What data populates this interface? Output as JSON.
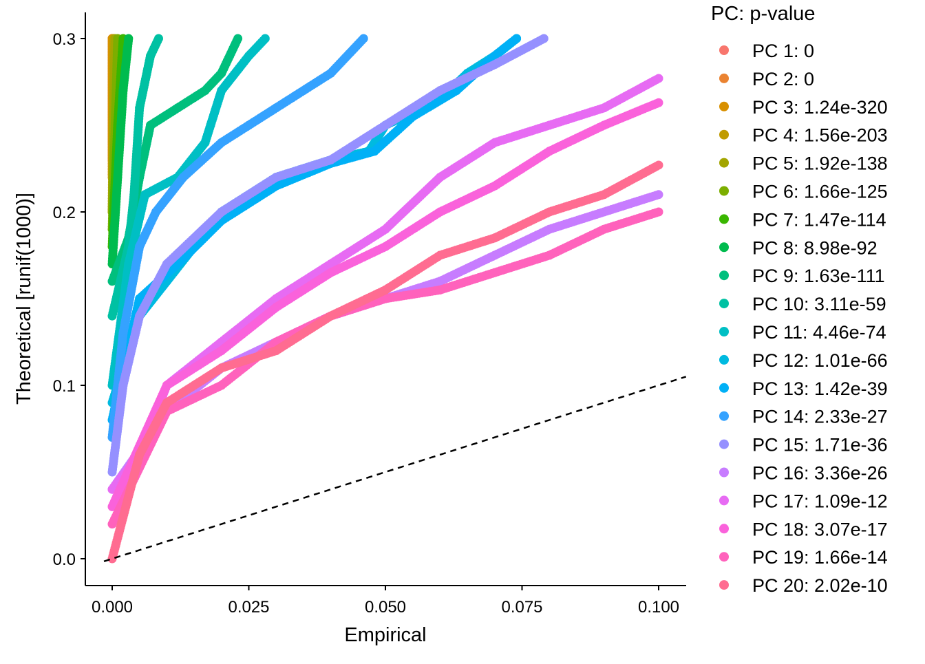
{
  "chart_data": {
    "type": "scatter",
    "title": "",
    "xlabel": "Empirical",
    "ylabel": "Theoretical [runif(1000)]",
    "xlim": [
      -0.005,
      0.105
    ],
    "ylim": [
      -0.015,
      0.315
    ],
    "x_ticks": [
      0.0,
      0.025,
      0.05,
      0.075,
      0.1
    ],
    "x_tick_labels": [
      "0.000",
      "0.025",
      "0.050",
      "0.075",
      "0.100"
    ],
    "y_ticks": [
      0.0,
      0.1,
      0.2,
      0.3
    ],
    "y_tick_labels": [
      "0.0",
      "0.1",
      "0.2",
      "0.3"
    ],
    "grid": false,
    "reference_line": {
      "slope": 1,
      "intercept": 0,
      "style": "dashed",
      "color": "#000000"
    },
    "legend": {
      "title": "PC: p-value",
      "placement": "right"
    },
    "series": [
      {
        "name": "PC 1: 0",
        "color": "#F8766D",
        "points": [
          [
            0,
            0.23
          ],
          [
            0,
            0.3
          ]
        ]
      },
      {
        "name": "PC 2: 0",
        "color": "#EA8331",
        "points": [
          [
            0,
            0.24
          ],
          [
            0,
            0.3
          ]
        ]
      },
      {
        "name": "PC 3: 1.24e-320",
        "color": "#D89000",
        "points": [
          [
            0,
            0.22
          ],
          [
            0,
            0.3
          ]
        ]
      },
      {
        "name": "PC 4: 1.56e-203",
        "color": "#C09B00",
        "points": [
          [
            0,
            0.2
          ],
          [
            0.0003,
            0.3
          ]
        ]
      },
      {
        "name": "PC 5: 1.92e-138",
        "color": "#A3A500",
        "points": [
          [
            0,
            0.2
          ],
          [
            0.0005,
            0.3
          ]
        ]
      },
      {
        "name": "PC 6: 1.66e-125",
        "color": "#7CAE00",
        "points": [
          [
            0,
            0.19
          ],
          [
            0.001,
            0.3
          ]
        ]
      },
      {
        "name": "PC 7: 1.47e-114",
        "color": "#39B600",
        "points": [
          [
            0,
            0.18
          ],
          [
            0.001,
            0.25
          ],
          [
            0.002,
            0.3
          ]
        ]
      },
      {
        "name": "PC 8: 8.98e-92",
        "color": "#00BB4E",
        "points": [
          [
            0,
            0.17
          ],
          [
            0.001,
            0.22
          ],
          [
            0.002,
            0.27
          ],
          [
            0.003,
            0.3
          ]
        ]
      },
      {
        "name": "PC 9: 1.63e-111",
        "color": "#00BF7D",
        "points": [
          [
            0,
            0.16
          ],
          [
            0.003,
            0.185
          ],
          [
            0.005,
            0.22
          ],
          [
            0.007,
            0.25
          ],
          [
            0.012,
            0.26
          ],
          [
            0.017,
            0.27
          ],
          [
            0.02,
            0.28
          ],
          [
            0.023,
            0.3
          ]
        ]
      },
      {
        "name": "PC 10: 3.11e-59",
        "color": "#00C1A3",
        "points": [
          [
            0,
            0.14
          ],
          [
            0.003,
            0.18
          ],
          [
            0.004,
            0.21
          ],
          [
            0.005,
            0.26
          ],
          [
            0.007,
            0.29
          ],
          [
            0.0085,
            0.3
          ]
        ]
      },
      {
        "name": "PC 11: 4.46e-74",
        "color": "#00BFC4",
        "points": [
          [
            0,
            0.1
          ],
          [
            0.003,
            0.17
          ],
          [
            0.006,
            0.21
          ],
          [
            0.012,
            0.22
          ],
          [
            0.017,
            0.24
          ],
          [
            0.018,
            0.25
          ],
          [
            0.02,
            0.27
          ],
          [
            0.025,
            0.29
          ],
          [
            0.028,
            0.3
          ]
        ]
      },
      {
        "name": "PC 12: 1.01e-66",
        "color": "#00BAE0",
        "points": [
          [
            0,
            0.09
          ],
          [
            0.005,
            0.14
          ],
          [
            0.01,
            0.16
          ],
          [
            0.015,
            0.18
          ],
          [
            0.02,
            0.2
          ],
          [
            0.03,
            0.22
          ],
          [
            0.04,
            0.23
          ],
          [
            0.047,
            0.235
          ],
          [
            0.05,
            0.25
          ],
          [
            0.06,
            0.265
          ],
          [
            0.065,
            0.28
          ],
          [
            0.07,
            0.29
          ],
          [
            0.074,
            0.3
          ]
        ]
      },
      {
        "name": "PC 13: 1.42e-39",
        "color": "#00B0F6",
        "points": [
          [
            0,
            0.08
          ],
          [
            0.005,
            0.15
          ],
          [
            0.012,
            0.17
          ],
          [
            0.02,
            0.195
          ],
          [
            0.03,
            0.215
          ],
          [
            0.04,
            0.228
          ],
          [
            0.048,
            0.235
          ],
          [
            0.055,
            0.255
          ],
          [
            0.063,
            0.27
          ],
          [
            0.07,
            0.29
          ],
          [
            0.074,
            0.3
          ]
        ]
      },
      {
        "name": "PC 14: 2.33e-27",
        "color": "#35A2FF",
        "points": [
          [
            0,
            0.07
          ],
          [
            0.002,
            0.13
          ],
          [
            0.005,
            0.18
          ],
          [
            0.008,
            0.2
          ],
          [
            0.013,
            0.22
          ],
          [
            0.02,
            0.24
          ],
          [
            0.025,
            0.25
          ],
          [
            0.03,
            0.26
          ],
          [
            0.04,
            0.28
          ],
          [
            0.046,
            0.3
          ]
        ]
      },
      {
        "name": "PC 15: 1.71e-36",
        "color": "#9590FF",
        "points": [
          [
            0,
            0.05
          ],
          [
            0.002,
            0.1
          ],
          [
            0.005,
            0.14
          ],
          [
            0.01,
            0.17
          ],
          [
            0.02,
            0.2
          ],
          [
            0.03,
            0.22
          ],
          [
            0.04,
            0.23
          ],
          [
            0.05,
            0.25
          ],
          [
            0.06,
            0.27
          ],
          [
            0.07,
            0.285
          ],
          [
            0.079,
            0.3
          ]
        ]
      },
      {
        "name": "PC 16: 3.36e-26",
        "color": "#C77CFF",
        "points": [
          [
            0,
            0.04
          ],
          [
            0.01,
            0.085
          ],
          [
            0.02,
            0.11
          ],
          [
            0.03,
            0.125
          ],
          [
            0.04,
            0.14
          ],
          [
            0.05,
            0.15
          ],
          [
            0.06,
            0.16
          ],
          [
            0.07,
            0.175
          ],
          [
            0.08,
            0.19
          ],
          [
            0.1,
            0.21
          ]
        ]
      },
      {
        "name": "PC 17: 1.09e-12",
        "color": "#E76BF3",
        "points": [
          [
            0,
            0.04
          ],
          [
            0.005,
            0.06
          ],
          [
            0.01,
            0.1
          ],
          [
            0.02,
            0.125
          ],
          [
            0.03,
            0.15
          ],
          [
            0.04,
            0.17
          ],
          [
            0.05,
            0.19
          ],
          [
            0.06,
            0.22
          ],
          [
            0.07,
            0.24
          ],
          [
            0.08,
            0.25
          ],
          [
            0.09,
            0.26
          ],
          [
            0.1,
            0.277
          ]
        ]
      },
      {
        "name": "PC 18: 3.07e-17",
        "color": "#FA62DB",
        "points": [
          [
            0,
            0.03
          ],
          [
            0.01,
            0.1
          ],
          [
            0.02,
            0.12
          ],
          [
            0.03,
            0.145
          ],
          [
            0.04,
            0.165
          ],
          [
            0.05,
            0.18
          ],
          [
            0.06,
            0.2
          ],
          [
            0.07,
            0.215
          ],
          [
            0.08,
            0.235
          ],
          [
            0.09,
            0.25
          ],
          [
            0.1,
            0.263
          ]
        ]
      },
      {
        "name": "PC 19: 1.66e-14",
        "color": "#FF62BC",
        "points": [
          [
            0,
            0.02
          ],
          [
            0.01,
            0.085
          ],
          [
            0.02,
            0.1
          ],
          [
            0.03,
            0.125
          ],
          [
            0.04,
            0.14
          ],
          [
            0.05,
            0.15
          ],
          [
            0.06,
            0.155
          ],
          [
            0.07,
            0.165
          ],
          [
            0.08,
            0.175
          ],
          [
            0.09,
            0.19
          ],
          [
            0.1,
            0.2
          ]
        ]
      },
      {
        "name": "PC 20: 2.02e-10",
        "color": "#FF6C91",
        "points": [
          [
            0,
            0.0
          ],
          [
            0.005,
            0.06
          ],
          [
            0.01,
            0.09
          ],
          [
            0.02,
            0.11
          ],
          [
            0.03,
            0.12
          ],
          [
            0.04,
            0.14
          ],
          [
            0.05,
            0.155
          ],
          [
            0.06,
            0.175
          ],
          [
            0.07,
            0.185
          ],
          [
            0.08,
            0.2
          ],
          [
            0.09,
            0.21
          ],
          [
            0.1,
            0.227
          ]
        ]
      }
    ]
  }
}
